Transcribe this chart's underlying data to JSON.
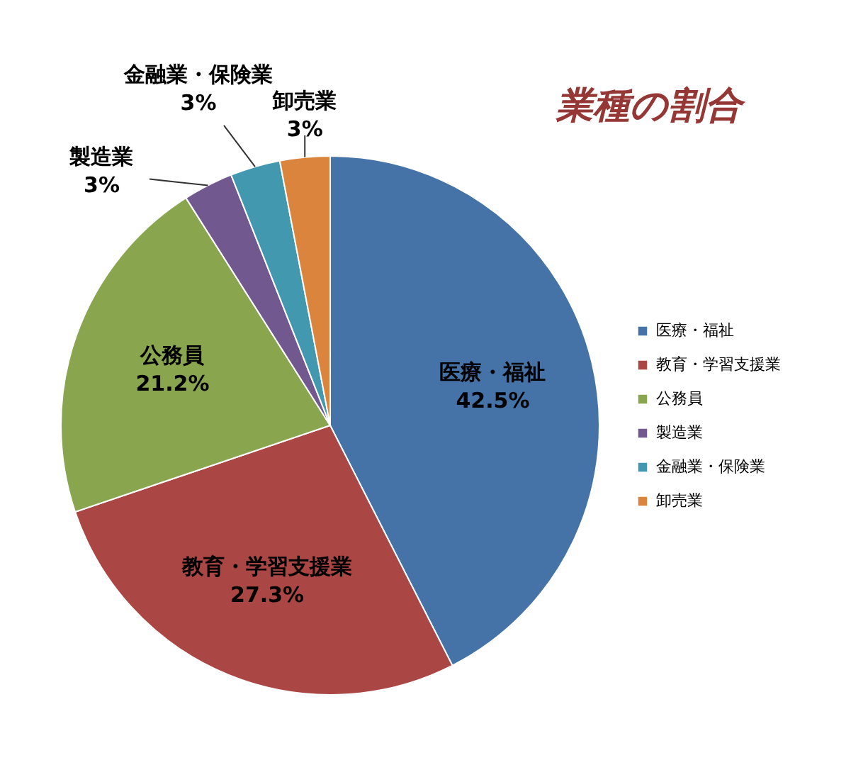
{
  "chart_data": {
    "type": "pie",
    "title": "業種の割合",
    "categories": [
      "医療・福祉",
      "教育・学習支援業",
      "公務員",
      "製造業",
      "金融業・保険業",
      "卸売業"
    ],
    "values": [
      42.5,
      27.3,
      21.2,
      3,
      3,
      3
    ],
    "value_labels": [
      "42.5%",
      "27.3%",
      "21.2%",
      "3%",
      "3%",
      "3%"
    ],
    "colors": [
      "#4572a7",
      "#aa4643",
      "#89a54e",
      "#71588f",
      "#4198af",
      "#db843d"
    ],
    "legend": "right"
  }
}
